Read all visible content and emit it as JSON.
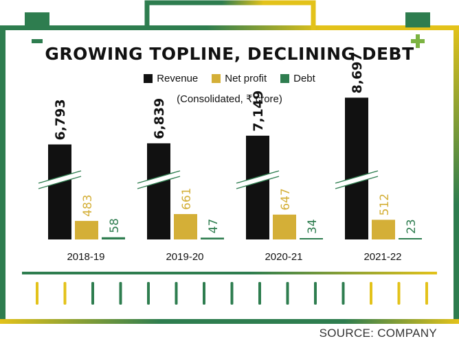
{
  "colors": {
    "revenue": "#111111",
    "net_profit": "#d4af37",
    "debt": "#2e7d4f",
    "frame_green": "#2e7d4f",
    "frame_yellow": "#e3c21a"
  },
  "icons": {
    "left": "minus-icon",
    "right": "plus-icon"
  },
  "chart_data": {
    "type": "bar",
    "title": "GROWING TOPLINE, DECLINING DEBT",
    "subtitle": "(Consolidated, ₹ crore)",
    "categories": [
      "2018-19",
      "2019-20",
      "2020-21",
      "2021-22"
    ],
    "series": [
      {
        "name": "Revenue",
        "values": [
          6793,
          6839,
          7149,
          8697
        ],
        "labels": [
          "6,793",
          "6,839",
          "7,149",
          "8,697"
        ]
      },
      {
        "name": "Net profit",
        "values": [
          483,
          661,
          647,
          512
        ],
        "labels": [
          "483",
          "661",
          "647",
          "512"
        ]
      },
      {
        "name": "Debt",
        "values": [
          58,
          47,
          34,
          23
        ],
        "labels": [
          "58",
          "47",
          "34",
          "23"
        ]
      }
    ],
    "legend_position": "top-center",
    "broken_axis": true,
    "grid": false
  },
  "source": "SOURCE: COMPANY"
}
